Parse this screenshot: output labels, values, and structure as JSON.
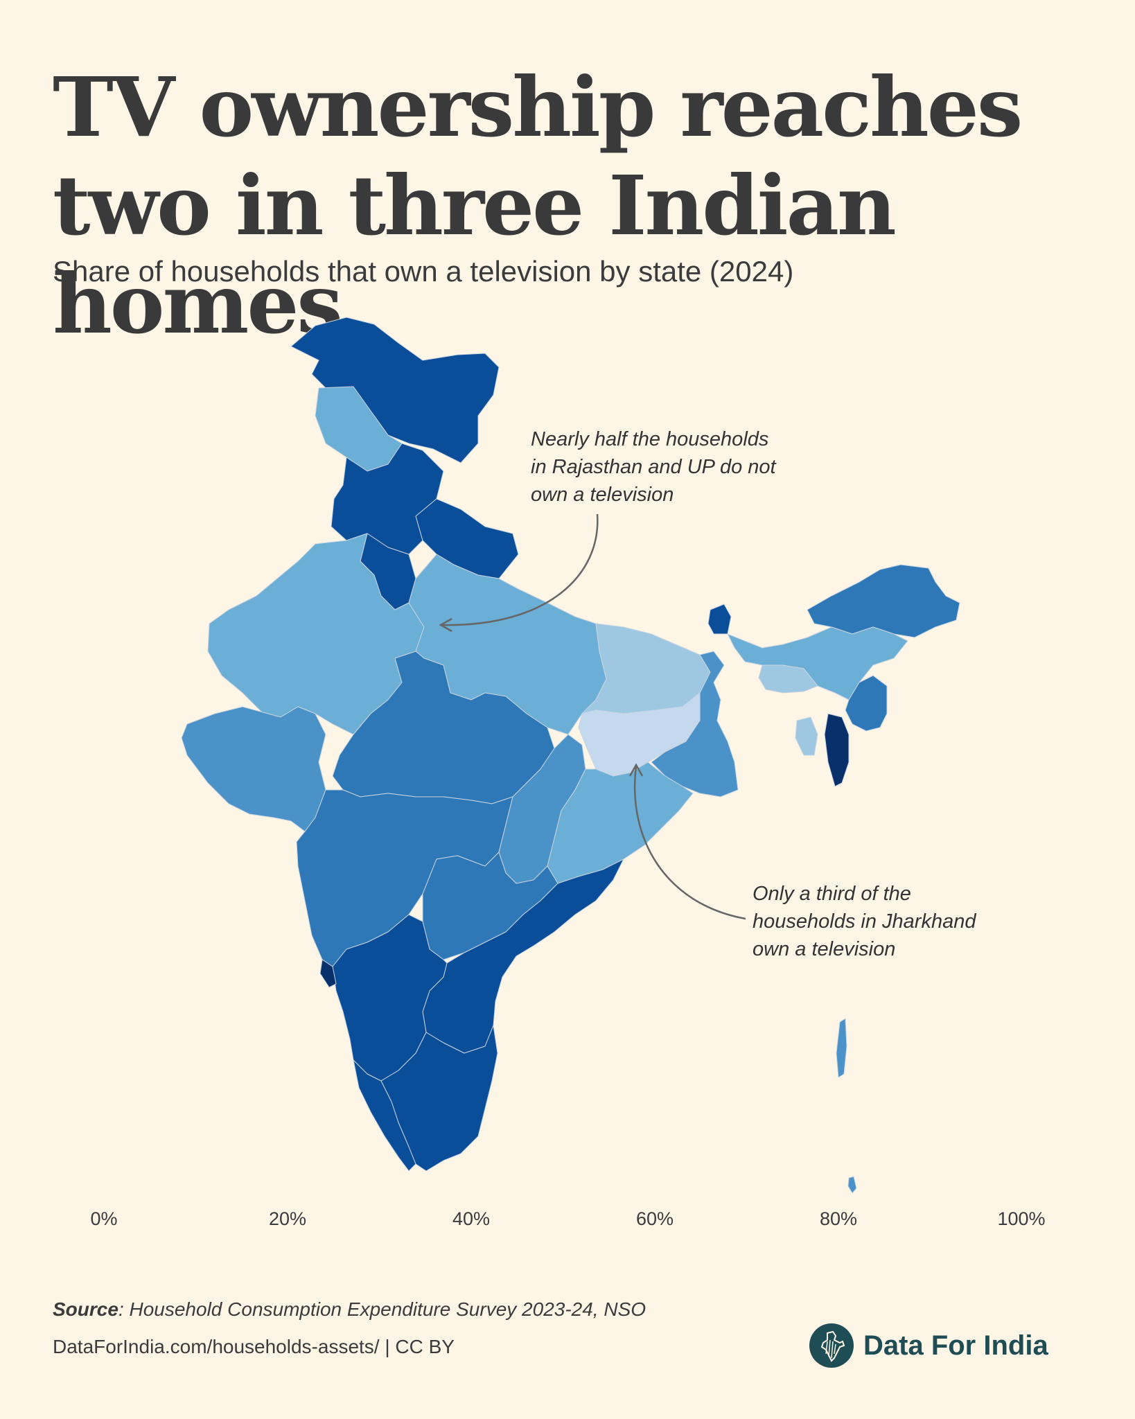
{
  "header": {
    "title": "TV ownership reaches two in three Indian homes",
    "subtitle": "Share of households that own a television by state (2024)"
  },
  "annotations": [
    {
      "text": "Nearly half the households\nin Rajasthan and UP do not\nown a television"
    },
    {
      "text": "Only a third of the\nhouseholds in Jharkhand\nown a television"
    }
  ],
  "legend": {
    "labels": [
      "0%",
      "20%",
      "40%",
      "60%",
      "80%",
      "100%"
    ],
    "colors": [
      "#ffffff",
      "#f2f6fb",
      "#dbe8f5",
      "#c4d9ee",
      "#9ec8e2",
      "#6baed6",
      "#4a92c8",
      "#2e78b8",
      "#1d63aa",
      "#0a4d99",
      "#08306b"
    ]
  },
  "footer": {
    "source_label": "Source",
    "source_text": ": Household Consumption Expenditure Survey 2023-24, NSO",
    "credit": "DataForIndia.com/households-assets/  |  CC BY",
    "brand": "Data For India"
  }
}
